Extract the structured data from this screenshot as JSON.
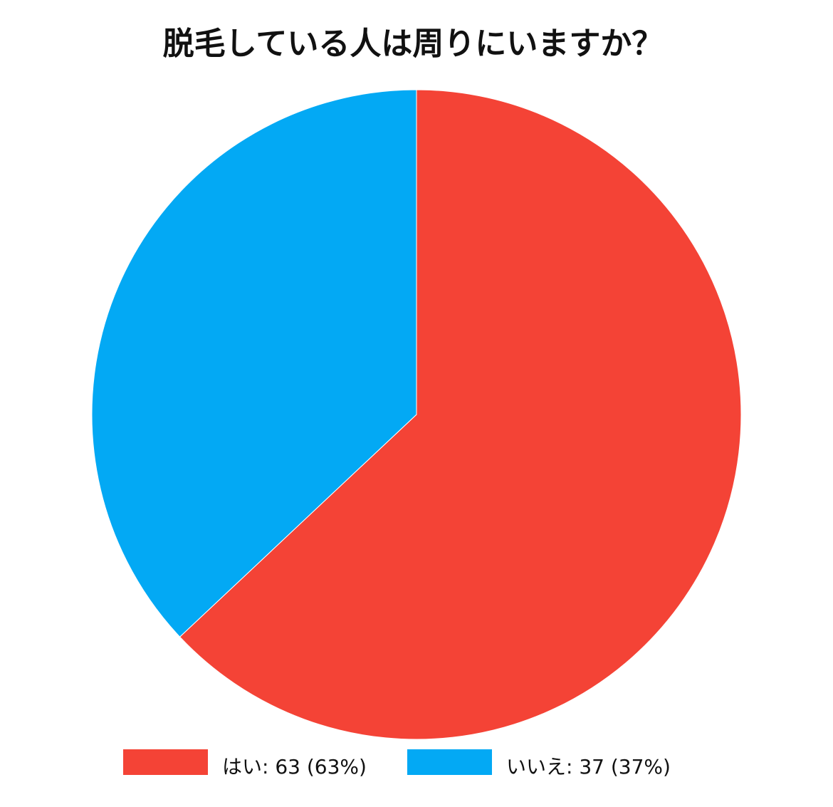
{
  "chart_data": {
    "type": "pie",
    "title": "脱毛している人は周りにいますか？",
    "categories": [
      "はい: 63 (63%)",
      "いいえ: 37 (37%)"
    ],
    "values": [
      63,
      37
    ],
    "colors": [
      "#f44336",
      "#03a9f4"
    ],
    "start_angle": 0,
    "direction": "clockwise"
  }
}
